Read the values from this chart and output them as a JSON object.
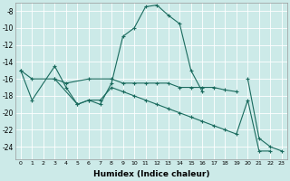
{
  "xlabel": "Humidex (Indice chaleur)",
  "bg_color": "#cceae8",
  "line_color": "#1a6b5e",
  "grid_color": "#ffffff",
  "xlim": [
    -0.5,
    23.5
  ],
  "ylim": [
    -25.5,
    -7.0
  ],
  "yticks": [
    -8,
    -10,
    -12,
    -14,
    -16,
    -18,
    -20,
    -22,
    -24
  ],
  "xticks": [
    0,
    1,
    2,
    3,
    4,
    5,
    6,
    7,
    8,
    9,
    10,
    11,
    12,
    13,
    14,
    15,
    16,
    17,
    18,
    19,
    20,
    21,
    22,
    23
  ],
  "series": [
    [
      [
        0,
        -15
      ],
      [
        1,
        -18.5
      ],
      [
        3,
        -14.5
      ],
      [
        4,
        -17
      ],
      [
        5,
        -19
      ],
      [
        6,
        -18.5
      ],
      [
        7,
        -19
      ],
      [
        8,
        -16.5
      ],
      [
        9,
        -11
      ],
      [
        10,
        -10
      ],
      [
        11,
        -7.5
      ],
      [
        12,
        -7.3
      ],
      [
        13,
        -8.5
      ],
      [
        14,
        -9.5
      ],
      [
        15,
        -15
      ],
      [
        16,
        -17.5
      ]
    ],
    [
      [
        3,
        -16
      ],
      [
        4,
        -16.5
      ],
      [
        6,
        -16
      ],
      [
        8,
        -16
      ],
      [
        9,
        -16.5
      ],
      [
        10,
        -16.5
      ],
      [
        11,
        -16.5
      ],
      [
        12,
        -16.5
      ],
      [
        13,
        -16.5
      ],
      [
        14,
        -17
      ],
      [
        15,
        -17
      ],
      [
        16,
        -17
      ],
      [
        17,
        -17
      ],
      [
        18,
        -17.3
      ],
      [
        19,
        -17.5
      ]
    ],
    [
      [
        0,
        -15
      ],
      [
        1,
        -16
      ],
      [
        3,
        -16
      ],
      [
        5,
        -19
      ],
      [
        6,
        -18.5
      ],
      [
        7,
        -18.5
      ],
      [
        8,
        -17
      ],
      [
        9,
        -17.5
      ],
      [
        10,
        -18
      ],
      [
        11,
        -18.5
      ],
      [
        12,
        -19
      ],
      [
        13,
        -19.5
      ],
      [
        14,
        -20
      ],
      [
        15,
        -20.5
      ],
      [
        16,
        -21
      ],
      [
        17,
        -21.5
      ],
      [
        18,
        -22
      ],
      [
        19,
        -22.5
      ],
      [
        20,
        -18.5
      ],
      [
        21,
        -24.5
      ],
      [
        22,
        -24.5
      ]
    ],
    [
      [
        20,
        -16
      ],
      [
        21,
        -23
      ],
      [
        22,
        -24
      ],
      [
        23,
        -24.5
      ]
    ]
  ]
}
